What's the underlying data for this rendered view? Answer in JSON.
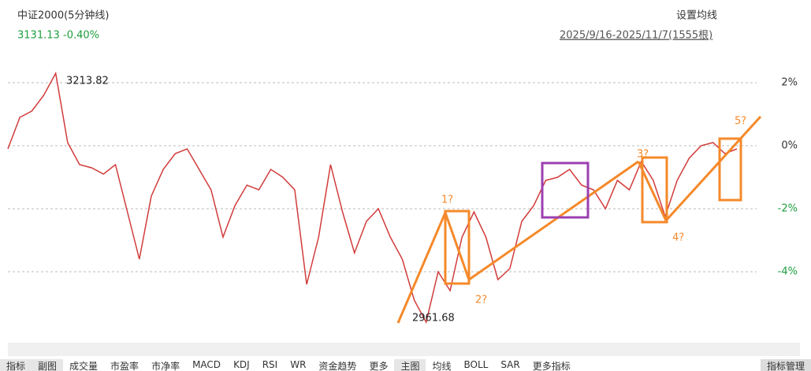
{
  "header": {
    "title": "中证2000(5分钟线)",
    "price": "3131.13",
    "change": "-0.40%",
    "settings": "设置均线",
    "range": "2025/9/16-2025/11/7(1555根)"
  },
  "chart_data": {
    "type": "line",
    "series": [
      {
        "name": "中证2000",
        "color": "#d23b3b",
        "values": [
          -0.1,
          0.9,
          1.1,
          1.6,
          2.3,
          0.1,
          -0.6,
          -0.7,
          -0.9,
          -0.6,
          -2.1,
          -3.6,
          -1.6,
          -0.75,
          -0.25,
          -0.1,
          -0.75,
          -1.4,
          -2.9,
          -1.9,
          -1.25,
          -1.4,
          -0.75,
          -1.0,
          -1.4,
          -4.4,
          -2.9,
          -0.6,
          -2.1,
          -3.4,
          -2.4,
          -2.0,
          -2.9,
          -3.6,
          -4.9,
          -5.6,
          -4.0,
          -4.6,
          -2.9,
          -2.1,
          -2.9,
          -4.25,
          -3.9,
          -2.4,
          -1.9,
          -1.1,
          -1.0,
          -0.75,
          -1.25,
          -1.4,
          -2.0,
          -1.1,
          -1.4,
          -0.5,
          -1.1,
          -2.25,
          -1.1,
          -0.4,
          0,
          0.1,
          -0.25,
          -0.1
        ]
      }
    ],
    "ylim": [
      -6.125,
      3.125
    ],
    "yticks": [
      {
        "value": 2,
        "label": "2%"
      },
      {
        "value": 0,
        "label": "0%"
      },
      {
        "value": -2,
        "label": "-2%"
      },
      {
        "value": -4,
        "label": "-4%"
      }
    ],
    "grid": true,
    "annotations": [
      {
        "text": "3213.82"
      },
      {
        "text": "2961.68"
      },
      {
        "text": "1?"
      },
      {
        "text": "2?"
      },
      {
        "text": "3?"
      },
      {
        "text": "4?"
      },
      {
        "text": "5?"
      }
    ]
  },
  "toolbar": {
    "left": [
      "指标",
      "副图",
      "成交量",
      "市盈率",
      "市净率",
      "MACD",
      "KDJ",
      "RSI",
      "WR",
      "资金趋势",
      "更多"
    ],
    "right": [
      "主图",
      "均线",
      "BOLL",
      "SAR",
      "更多指标"
    ],
    "manage": "指标管理"
  }
}
